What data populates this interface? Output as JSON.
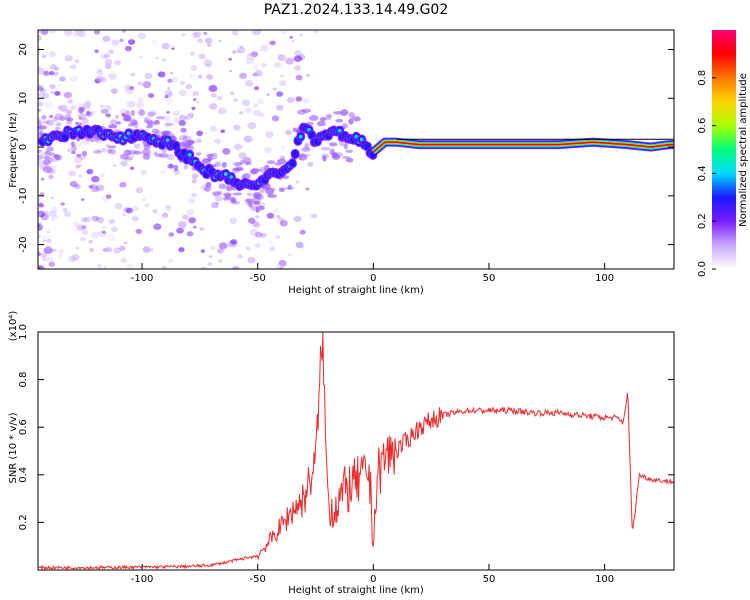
{
  "title": "PAZ1.2024.133.14.49.G02",
  "colors": {
    "snr_line": "#ee2a2a",
    "colorbar": [
      "#ffffff",
      "#c9a7ff",
      "#7a1cff",
      "#1a1aff",
      "#00d9ff",
      "#00ff7a",
      "#a8ff00",
      "#ffd400",
      "#ff7700",
      "#ff0000",
      "#ff0077"
    ]
  },
  "chart_data": [
    {
      "type": "heatmap",
      "xlabel": "Height of straight line (km)",
      "ylabel": "Frequency (Hz)",
      "xlim": [
        -145,
        130
      ],
      "ylim": [
        -25,
        24
      ],
      "xticks": [
        -100,
        -50,
        0,
        50,
        100
      ],
      "yticks": [
        -20,
        -10,
        0,
        10,
        20
      ],
      "colorbar": {
        "label": "Normalized spectral amplitude",
        "range": [
          0,
          1
        ],
        "ticks": [
          "0.0",
          "0.2",
          "0.4",
          "0.6",
          "0.8"
        ]
      },
      "ridge": {
        "height_km": [
          -143,
          -130,
          -120,
          -110,
          -100,
          -90,
          -80,
          -72,
          -65,
          -58,
          -50,
          -45,
          -40,
          -35,
          -30,
          -25,
          -20,
          -15,
          -10,
          -5,
          0,
          5,
          10,
          20,
          40,
          60,
          80,
          95,
          110,
          120,
          128
        ],
        "frequency_hz": [
          1,
          3,
          3,
          2,
          2.5,
          1,
          -2,
          -5,
          -6,
          -7.5,
          -8,
          -6,
          -5,
          -3,
          5,
          1,
          3,
          3,
          2,
          1,
          -1,
          1,
          1,
          0.5,
          0.5,
          0.5,
          0.5,
          1,
          0.5,
          0,
          0.5
        ]
      }
    },
    {
      "type": "line",
      "xlabel": "Height of straight line (km)",
      "ylabel": "SNR (10 * v/v)",
      "multiplier": "(x10⁴)",
      "xlim": [
        -145,
        130
      ],
      "ylim": [
        0,
        1
      ],
      "xticks": [
        -100,
        -50,
        0,
        50,
        100
      ],
      "yticks": [
        0.2,
        0.4,
        0.6,
        0.8,
        1.0
      ],
      "series": [
        {
          "height_km": [
            -145,
            -120,
            -100,
            -80,
            -70,
            -60,
            -50,
            -45,
            -40,
            -35,
            -30,
            -25,
            -22,
            -20,
            -18,
            -15,
            -10,
            -5,
            -2,
            0,
            2,
            5,
            10,
            15,
            20,
            25,
            30,
            40,
            50,
            60,
            70,
            80,
            90,
            100,
            105,
            108,
            110,
            112,
            115,
            120,
            130
          ],
          "snr": [
            0.01,
            0.01,
            0.012,
            0.015,
            0.02,
            0.04,
            0.06,
            0.12,
            0.18,
            0.25,
            0.3,
            0.45,
            1.0,
            0.35,
            0.25,
            0.3,
            0.35,
            0.38,
            0.42,
            0.15,
            0.4,
            0.48,
            0.5,
            0.55,
            0.6,
            0.63,
            0.65,
            0.67,
            0.67,
            0.67,
            0.66,
            0.66,
            0.65,
            0.64,
            0.64,
            0.62,
            0.75,
            0.15,
            0.4,
            0.38,
            0.37
          ]
        }
      ]
    }
  ]
}
